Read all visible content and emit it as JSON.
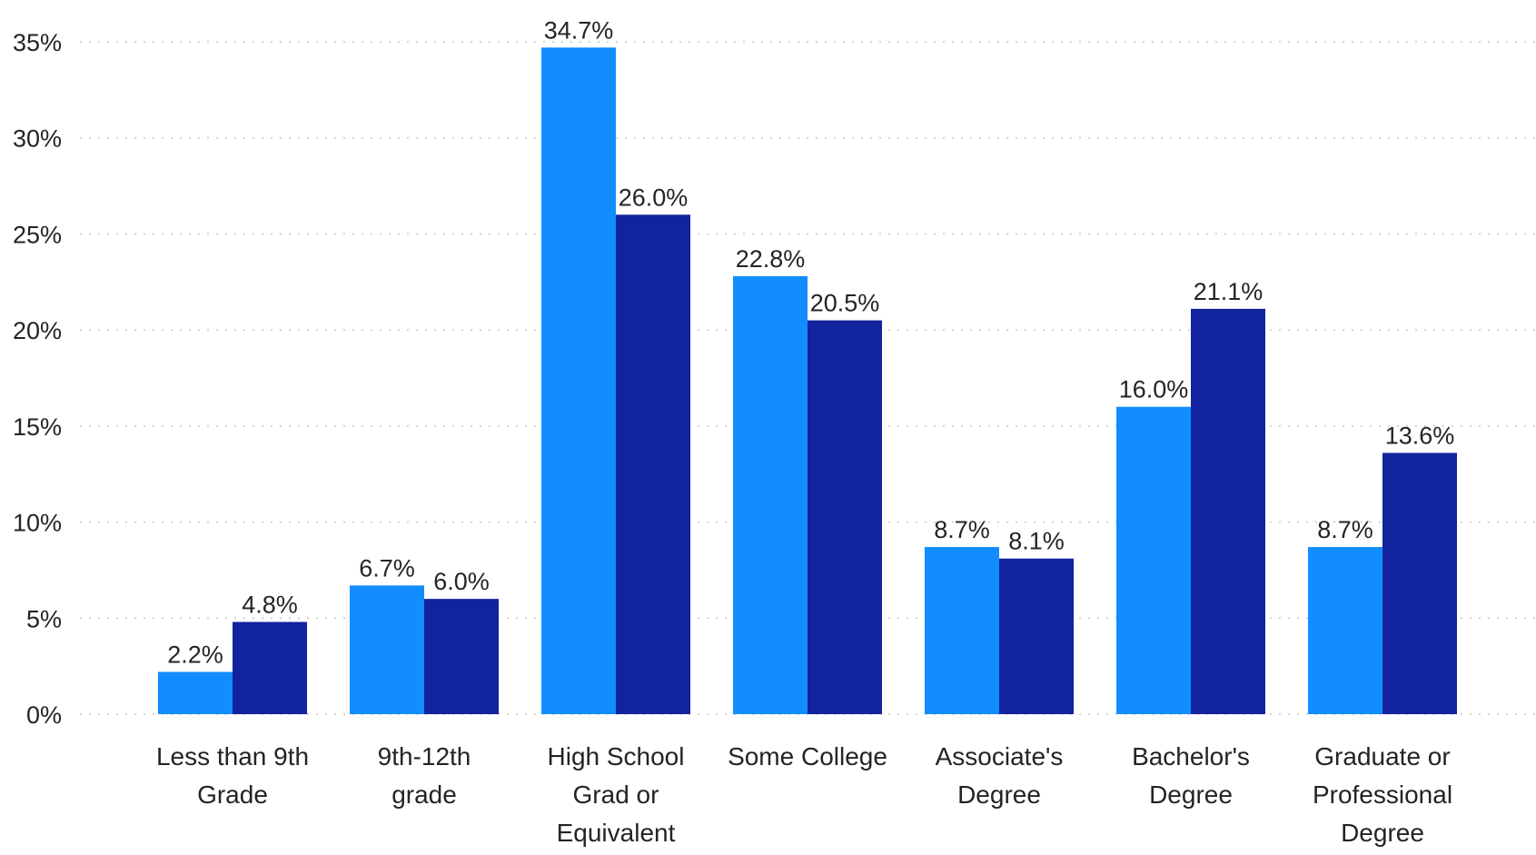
{
  "chart_data": {
    "type": "bar",
    "title": "",
    "xlabel": "",
    "ylabel": "",
    "ylim": [
      0,
      35
    ],
    "y_ticks": [
      "0%",
      "5%",
      "10%",
      "15%",
      "20%",
      "25%",
      "30%",
      "35%"
    ],
    "y_tick_values": [
      0,
      5,
      10,
      15,
      20,
      25,
      30,
      35
    ],
    "grid": true,
    "legend": "none",
    "categories": [
      [
        "Less than 9th",
        "Grade"
      ],
      [
        "9th-12th",
        "grade"
      ],
      [
        "High School",
        "Grad or",
        "Equivalent"
      ],
      [
        "Some College"
      ],
      [
        "Associate's",
        "Degree"
      ],
      [
        "Bachelor's",
        "Degree"
      ],
      [
        "Graduate or",
        "Professional",
        "Degree"
      ]
    ],
    "series": [
      {
        "values": [
          2.2,
          6.7,
          34.7,
          22.8,
          8.7,
          16.0,
          8.7
        ],
        "labels": [
          "2.2%",
          "6.7%",
          "34.7%",
          "22.8%",
          "8.7%",
          "16.0%",
          "8.7%"
        ],
        "color": "#118DFF"
      },
      {
        "values": [
          4.8,
          6.0,
          26.0,
          20.5,
          8.1,
          21.1,
          13.6
        ],
        "labels": [
          "4.8%",
          "6.0%",
          "26.0%",
          "20.5%",
          "8.1%",
          "21.1%",
          "13.6%"
        ],
        "color": "#12239E"
      }
    ]
  }
}
